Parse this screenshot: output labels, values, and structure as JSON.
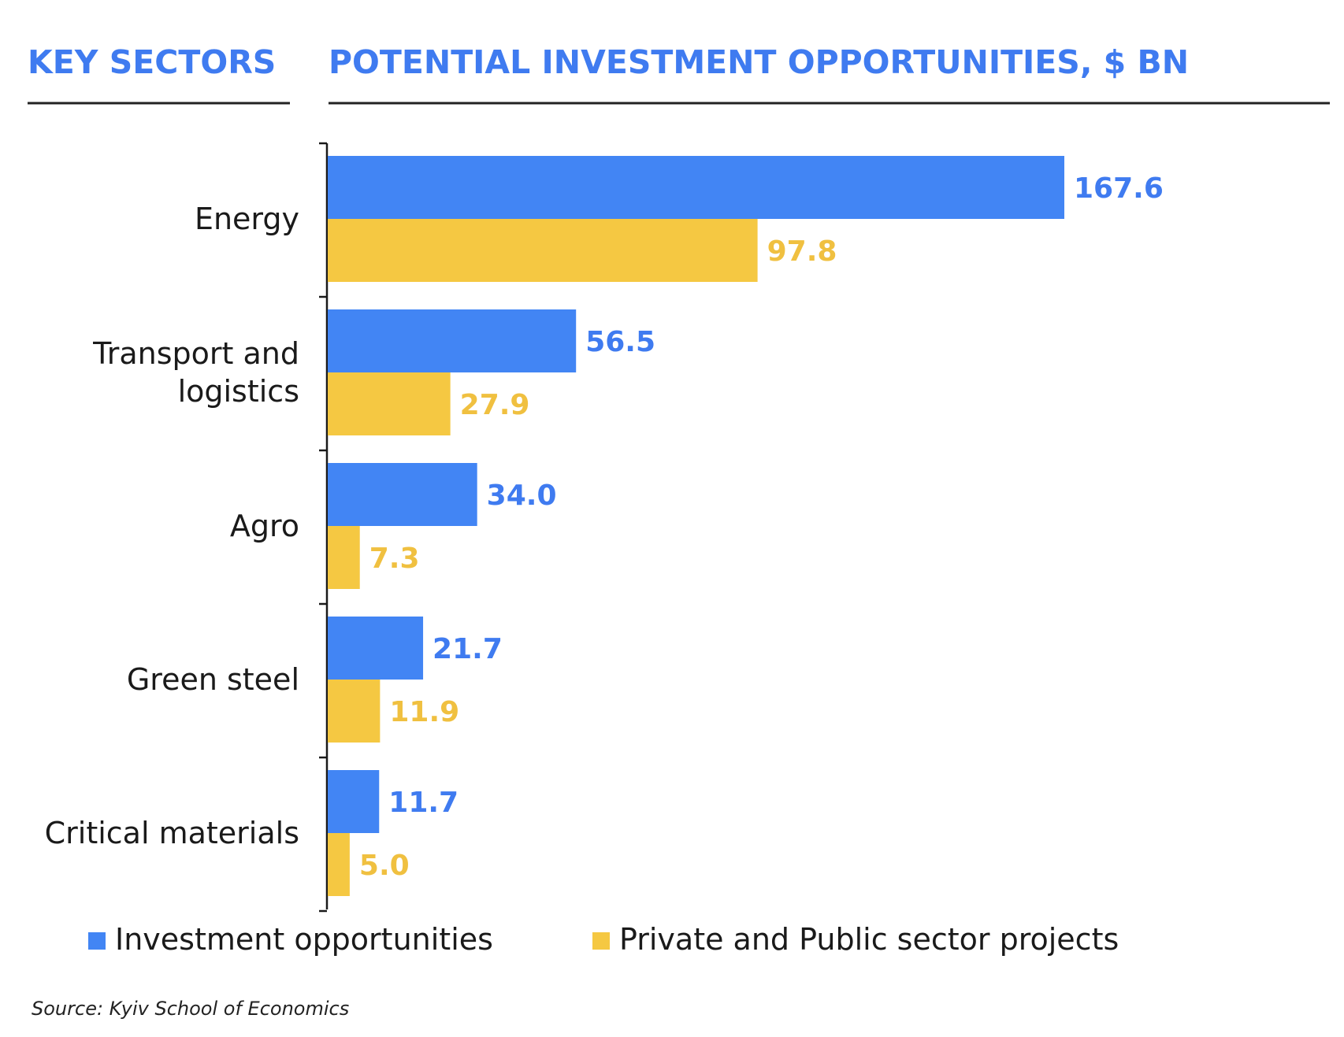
{
  "chart_data": {
    "type": "bar",
    "orientation": "horizontal",
    "title_left": "KEY SECTORS",
    "title_right": "POTENTIAL INVESTMENT OPPORTUNITIES, $ BN",
    "categories": [
      "Energy",
      "Transport and logistics",
      "Agro",
      "Green steel",
      "Critical materials"
    ],
    "category_lines": [
      [
        "Energy"
      ],
      [
        "Transport and",
        "logistics"
      ],
      [
        "Agro"
      ],
      [
        "Green steel"
      ],
      [
        "Critical materials"
      ]
    ],
    "series": [
      {
        "name": "Investment opportunities",
        "values": [
          167.6,
          56.5,
          34.0,
          21.7,
          11.7
        ],
        "labels": [
          "167.6",
          "56.5",
          "34.0",
          "21.7",
          "11.7"
        ]
      },
      {
        "name": "Private and Public sector projects",
        "values": [
          97.8,
          27.9,
          7.3,
          11.9,
          5.0
        ],
        "labels": [
          "97.8",
          "27.9",
          "7.3",
          "11.9",
          "5.0"
        ]
      }
    ],
    "xlim": [
      0,
      167.6
    ],
    "grid": false,
    "legend_position": "bottom",
    "source": "Source: Kyiv School of Economics"
  },
  "colors": {
    "heading": "#3f7bf0",
    "series": [
      "#4285f4",
      "#f5c842"
    ],
    "series_label": [
      "#3f7bf0",
      "#f0c040"
    ],
    "axis": "#1a1a1a",
    "rule": "#222222"
  }
}
